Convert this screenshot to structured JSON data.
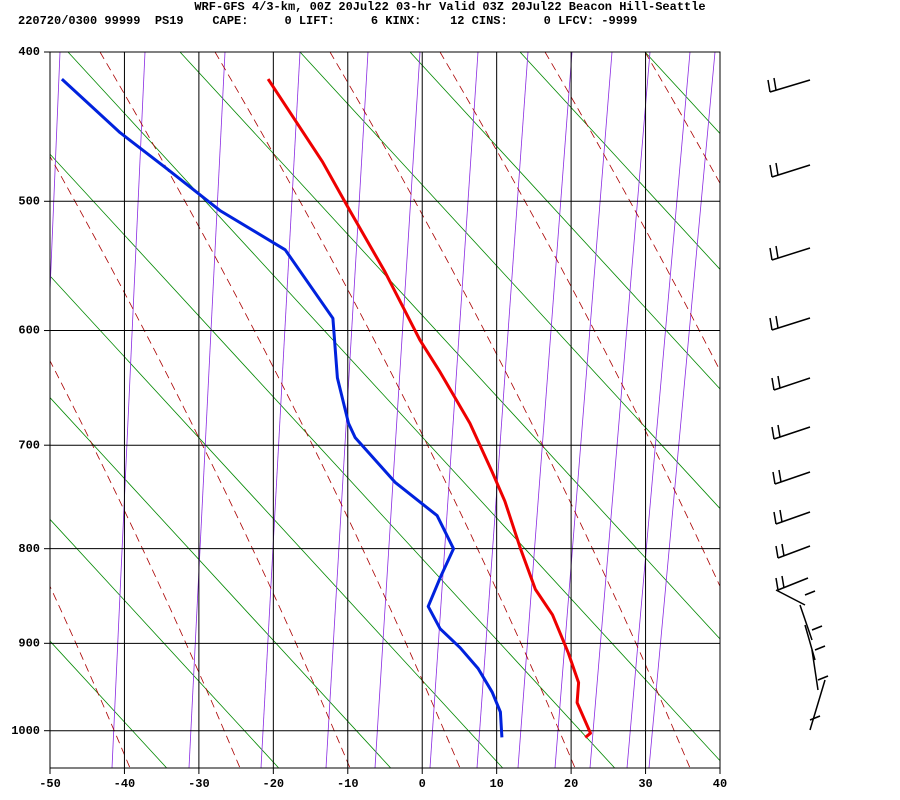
{
  "chart_data": {
    "type": "sounding",
    "title": "WRF-GFS 4/3-km, 00Z 20Jul22 03-hr Valid 03Z 20Jul22 Beacon Hill-Seattle",
    "subtitle": "220720/0300 99999  PS19    CAPE:     0 LIFT:     6 KINX:    12 CINS:     0 LFCV: -9999",
    "xlim": [
      -50,
      40
    ],
    "xticks": [
      -50,
      -40,
      -30,
      -20,
      -10,
      0,
      10,
      20,
      30,
      40
    ],
    "ylim": [
      1045,
      400
    ],
    "yticks": [
      400,
      500,
      600,
      700,
      800,
      900,
      1000
    ],
    "y_scale": "power",
    "y_power": 0.286,
    "grid": true,
    "series": [
      {
        "color": "#ee0000",
        "x": [
          -20.7,
          -13.4,
          -9.7,
          -5.0,
          -0.3,
          2.4,
          6.4,
          9.4,
          11.1,
          13.2,
          15.2,
          17.5,
          19.6,
          21.0,
          20.8,
          22.6,
          21.9
        ],
        "values": [
          417,
          472,
          507,
          553,
          608,
          635,
          680,
          725,
          753,
          800,
          842,
          869,
          910,
          944,
          967,
          1003,
          1008
        ]
      },
      {
        "color": "#0022dd",
        "x": [
          -48.4,
          -40.6,
          -34.5,
          -27.1,
          -18.4,
          -12.0,
          -11.4,
          -9.9,
          -9.0,
          -3.6,
          2.0,
          4.2,
          2.4,
          0.8,
          2.4,
          5.1,
          7.5,
          9.4,
          10.5,
          10.7
        ],
        "values": [
          417,
          452,
          476,
          507,
          536,
          590,
          640,
          680,
          693,
          735,
          767,
          800,
          830,
          860,
          884,
          905,
          928,
          955,
          978,
          1008
        ]
      }
    ]
  }
}
